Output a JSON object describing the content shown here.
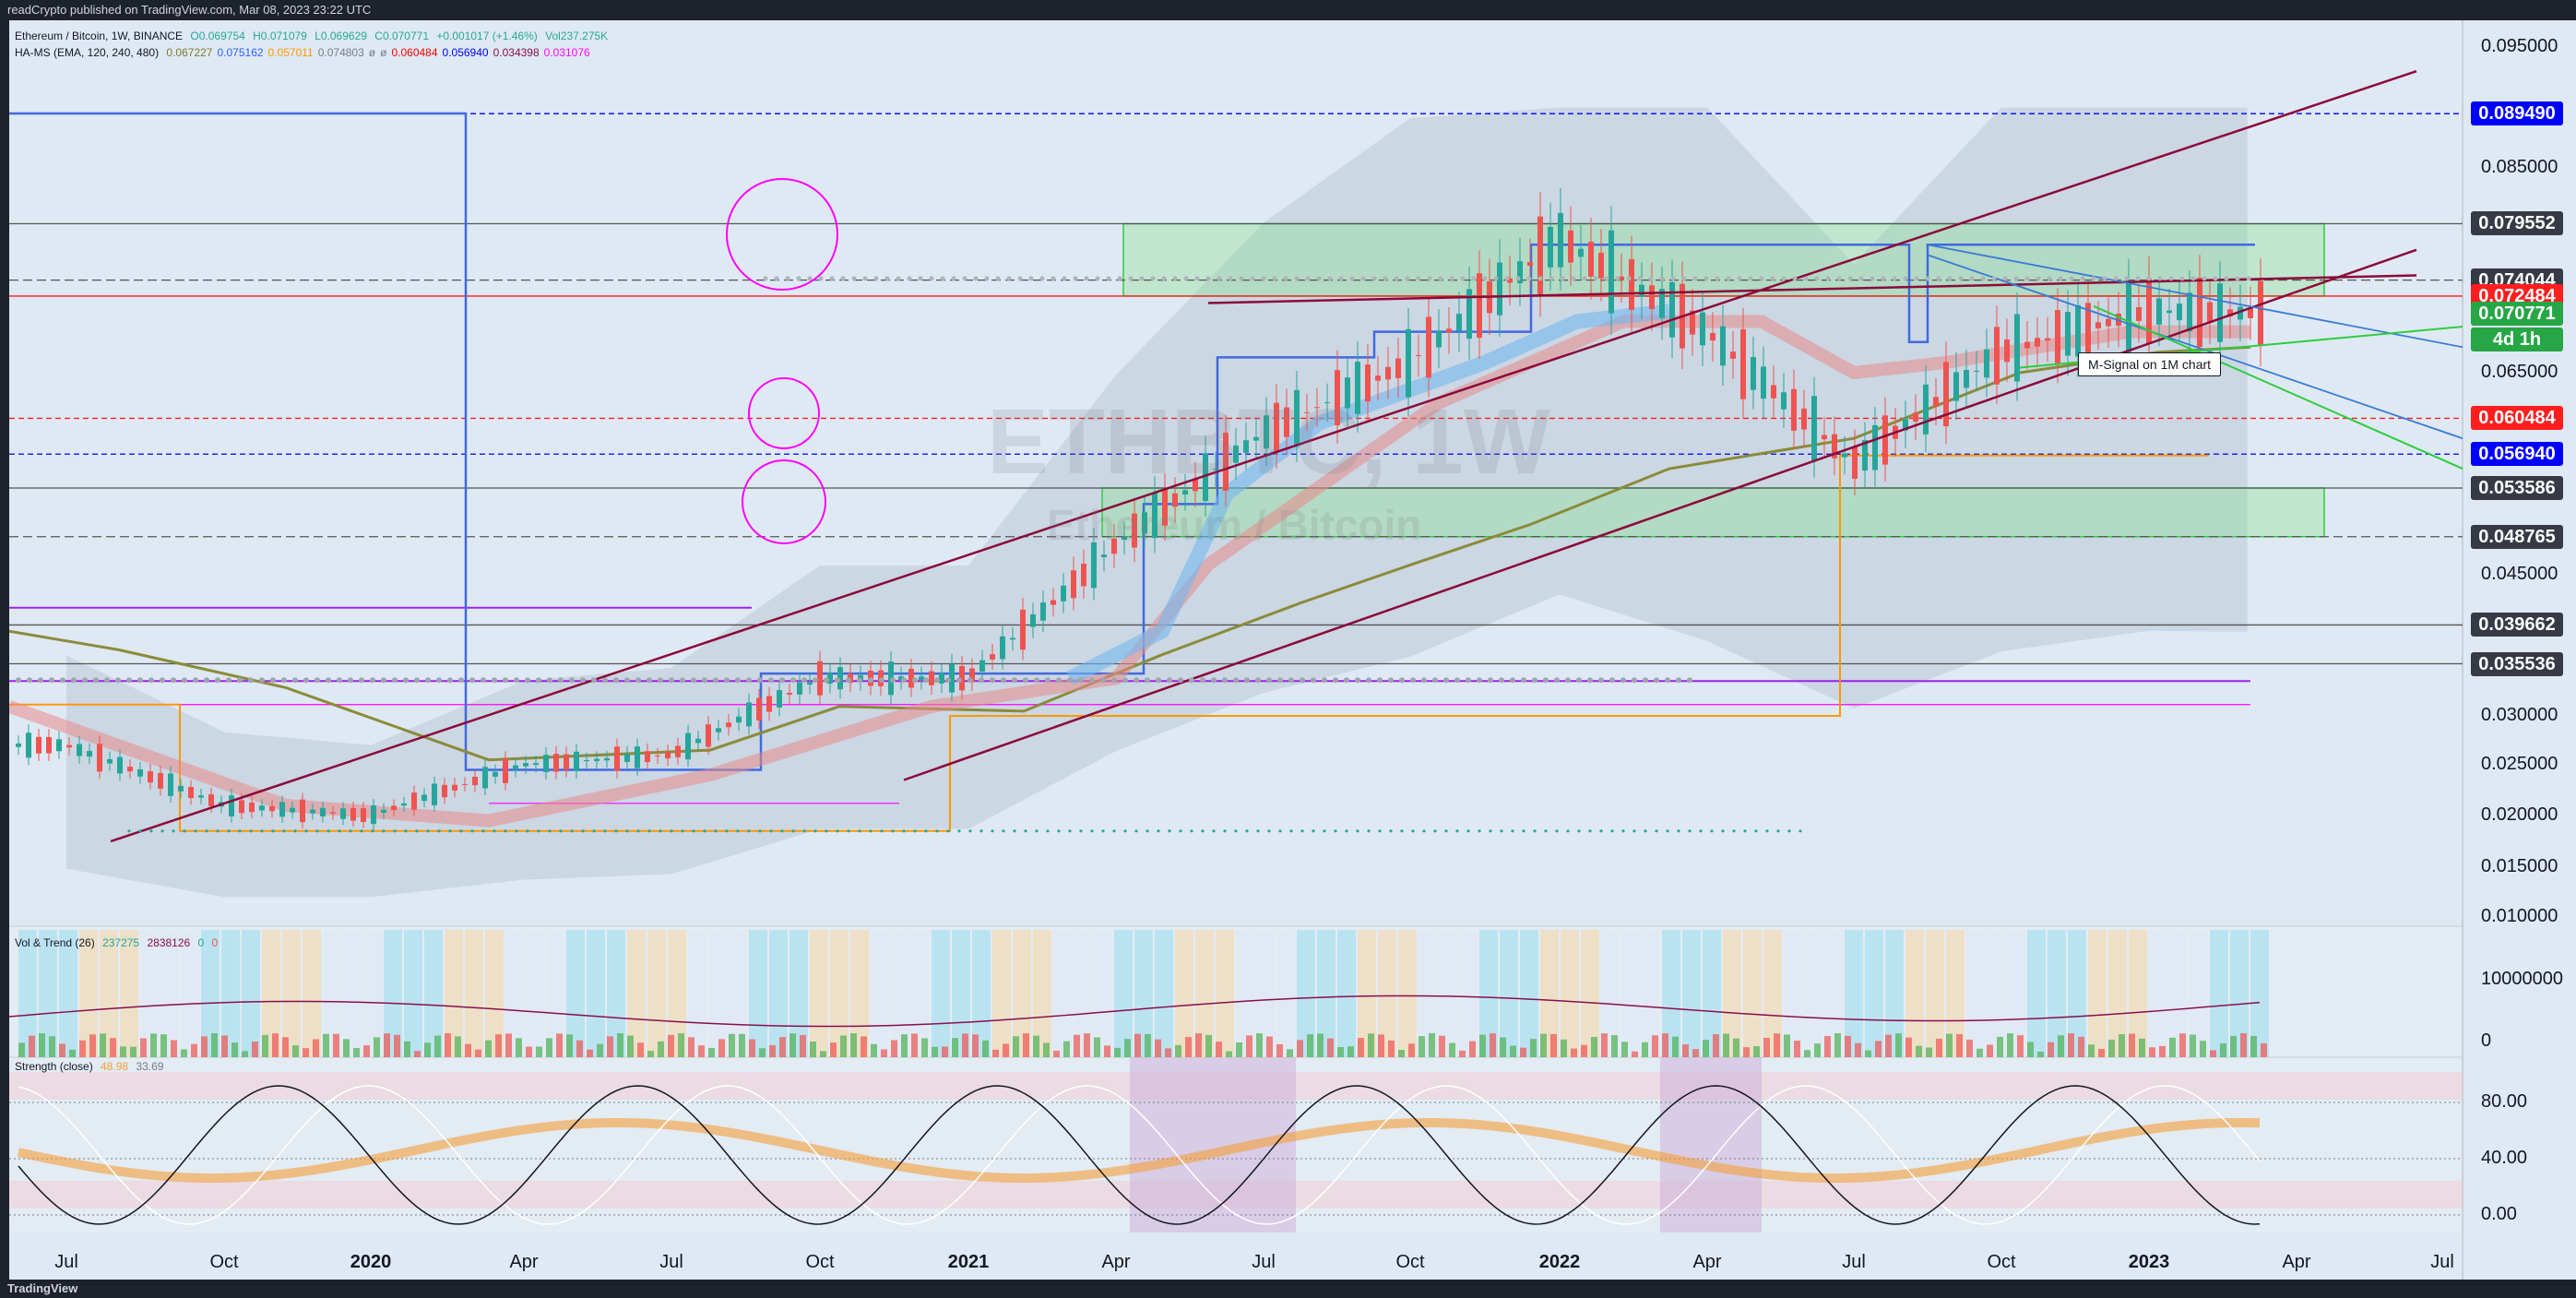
{
  "header": {
    "published": "readCrypto published on TradingView.com, Mar 08, 2023 23:22 UTC"
  },
  "footer": {
    "brand": "TradingView"
  },
  "legend": {
    "main": {
      "symbol": "Ethereum / Bitcoin, 1W, BINANCE",
      "open": "O0.069754",
      "high": "H0.071079",
      "low": "L0.069629",
      "close": "C0.070771",
      "change": "+0.001017 (+1.46%)",
      "volume": "Vol237.275K"
    },
    "hams": {
      "name": "HA-MS (EMA, 120, 240, 480)",
      "values": [
        "0.067227",
        "0.075162",
        "0.057011",
        "0.074803",
        "ø",
        "ø",
        "0.060484",
        "0.056940",
        "0.034398",
        "0.031076"
      ],
      "colors": [
        "#7d7d2e",
        "#2962ff",
        "#ff9800",
        "#787b86",
        "#787b86",
        "#787b86",
        "#ff0000",
        "#0000ff",
        "#880e4f",
        "#ff00ff"
      ]
    },
    "vol": {
      "name": "Vol & Trend (26)",
      "v1": "237275",
      "v2": "2838126",
      "v3": "0",
      "v4": "0"
    },
    "strength": {
      "name": "Strength (close)",
      "v1": "48.98",
      "v2": "33.69"
    }
  },
  "watermark": {
    "symbol": "ETHBTC, 1W",
    "name": "Ethereum / Bitcoin"
  },
  "annotation": "M-Signal on 1M chart",
  "price_axis": {
    "ticks": [
      "0.095000",
      "0.085000",
      "0.065000",
      "0.045000",
      "0.030000",
      "0.025000",
      "0.020000",
      "0.015000",
      "0.010000"
    ],
    "labels": [
      {
        "text": "0.089490",
        "color": "#0000ff"
      },
      {
        "text": "0.079552",
        "color": "#363a45"
      },
      {
        "text": "0.074044",
        "color": "#363a45"
      },
      {
        "text": "0.072484",
        "color": "#ff1e1e"
      },
      {
        "text": "0.070771",
        "color": "#26a645"
      },
      {
        "text": "4d 1h",
        "color": "#26a645"
      },
      {
        "text": "0.060484",
        "color": "#ff1e1e"
      },
      {
        "text": "0.056940",
        "color": "#0000ff"
      },
      {
        "text": "0.053586",
        "color": "#363a45"
      },
      {
        "text": "0.048765",
        "color": "#363a45"
      },
      {
        "text": "0.039662",
        "color": "#363a45"
      },
      {
        "text": "0.035536",
        "color": "#363a45"
      }
    ]
  },
  "vol_axis": {
    "ticks": [
      "10000000",
      "0"
    ]
  },
  "strength_axis": {
    "ticks": [
      "80.00",
      "40.00",
      "0.00"
    ]
  },
  "time_axis": {
    "ticks": [
      {
        "label": "Jul",
        "bold": false
      },
      {
        "label": "Oct",
        "bold": false
      },
      {
        "label": "2020",
        "bold": true
      },
      {
        "label": "Apr",
        "bold": false
      },
      {
        "label": "Jul",
        "bold": false
      },
      {
        "label": "Oct",
        "bold": false
      },
      {
        "label": "2021",
        "bold": true
      },
      {
        "label": "Apr",
        "bold": false
      },
      {
        "label": "Jul",
        "bold": false
      },
      {
        "label": "Oct",
        "bold": false
      },
      {
        "label": "2022",
        "bold": true
      },
      {
        "label": "Apr",
        "bold": false
      },
      {
        "label": "Jul",
        "bold": false
      },
      {
        "label": "Oct",
        "bold": false
      },
      {
        "label": "2023",
        "bold": true
      },
      {
        "label": "Apr",
        "bold": false
      },
      {
        "label": "Jul",
        "bold": false
      }
    ]
  },
  "chart_data": {
    "type": "line",
    "title": "Ethereum / Bitcoin, 1W, BINANCE",
    "xlabel": "",
    "ylabel": "",
    "ylim": [
      0.01,
      0.095
    ],
    "x": [
      "2019-07",
      "2019-10",
      "2020-01",
      "2020-04",
      "2020-07",
      "2020-10",
      "2021-01",
      "2021-04",
      "2021-07",
      "2021-10",
      "2022-01",
      "2022-04",
      "2022-07",
      "2022-10",
      "2023-01",
      "2023-03"
    ],
    "series": [
      {
        "name": "ETHBTC close (approx.)",
        "values": [
          0.027,
          0.021,
          0.02,
          0.025,
          0.026,
          0.034,
          0.034,
          0.048,
          0.059,
          0.066,
          0.078,
          0.069,
          0.056,
          0.067,
          0.071,
          0.0708
        ]
      }
    ],
    "levels": [
      0.08949,
      0.079552,
      0.074044,
      0.072484,
      0.060484,
      0.05694,
      0.053586,
      0.048765,
      0.039662,
      0.035536
    ],
    "current_close": 0.070771
  }
}
